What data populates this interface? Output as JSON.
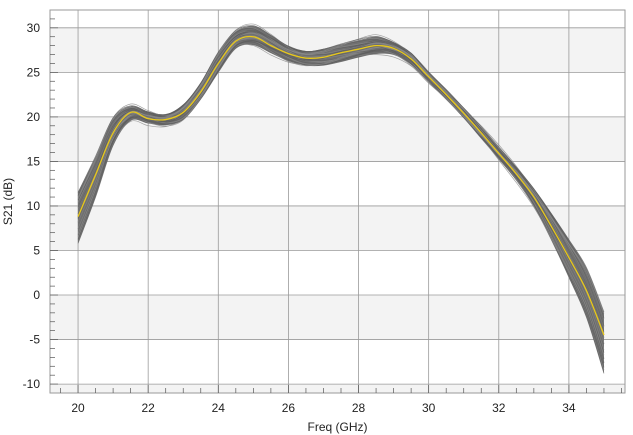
{
  "chart_data": {
    "type": "line",
    "title": "",
    "xlabel": "Freq (GHz)",
    "ylabel": "S21 (dB)",
    "xlim": [
      19.2,
      35.6
    ],
    "ylim": [
      -11,
      32
    ],
    "xticks": [
      20,
      22,
      24,
      26,
      28,
      30,
      32,
      34
    ],
    "yticks": [
      -10,
      -5,
      0,
      5,
      10,
      15,
      20,
      25,
      30
    ],
    "grid": true,
    "legend": "none",
    "colors": {
      "ensemble": "#707070",
      "nominal": "#e8c81a",
      "band_light": "#f3f3f3",
      "band_white": "#ffffff",
      "grid": "#9a9a9a",
      "frame": "#9a9a9a"
    },
    "x": [
      20,
      20.5,
      21,
      21.5,
      22,
      22.5,
      23,
      23.5,
      24,
      24.5,
      25,
      25.5,
      26,
      26.5,
      27,
      27.5,
      28,
      28.5,
      29,
      29.5,
      30,
      30.5,
      31,
      31.5,
      32,
      32.5,
      33,
      33.5,
      34,
      34.5,
      35
    ],
    "series": [
      {
        "role": "nominal",
        "values": [
          8.8,
          13.5,
          18.2,
          20.5,
          19.8,
          19.7,
          20.5,
          22.8,
          26.0,
          28.5,
          29.0,
          28.0,
          27.1,
          26.6,
          26.7,
          27.2,
          27.6,
          28.0,
          27.7,
          26.5,
          24.5,
          22.5,
          20.4,
          18.2,
          15.9,
          13.6,
          11.0,
          7.7,
          4.2,
          0.5,
          -4.5
        ]
      },
      {
        "role": "ensemble-upper",
        "values": [
          11.5,
          15.5,
          19.8,
          21.2,
          20.6,
          20.3,
          21.4,
          23.8,
          27.2,
          29.6,
          30.2,
          29.2,
          28.0,
          27.4,
          27.6,
          28.1,
          28.6,
          29.0,
          28.4,
          27.2,
          25.0,
          23.0,
          20.9,
          18.8,
          16.6,
          14.4,
          12.0,
          9.2,
          6.2,
          3.0,
          -2.0
        ]
      },
      {
        "role": "ensemble-lower",
        "values": [
          5.8,
          11.0,
          16.8,
          19.6,
          19.3,
          19.1,
          19.7,
          22.0,
          25.0,
          27.7,
          28.1,
          27.2,
          26.3,
          25.8,
          25.8,
          26.2,
          26.7,
          27.1,
          27.0,
          25.9,
          23.9,
          22.0,
          19.9,
          17.6,
          15.3,
          12.9,
          10.0,
          6.2,
          2.0,
          -2.5,
          -8.8
        ]
      }
    ]
  }
}
